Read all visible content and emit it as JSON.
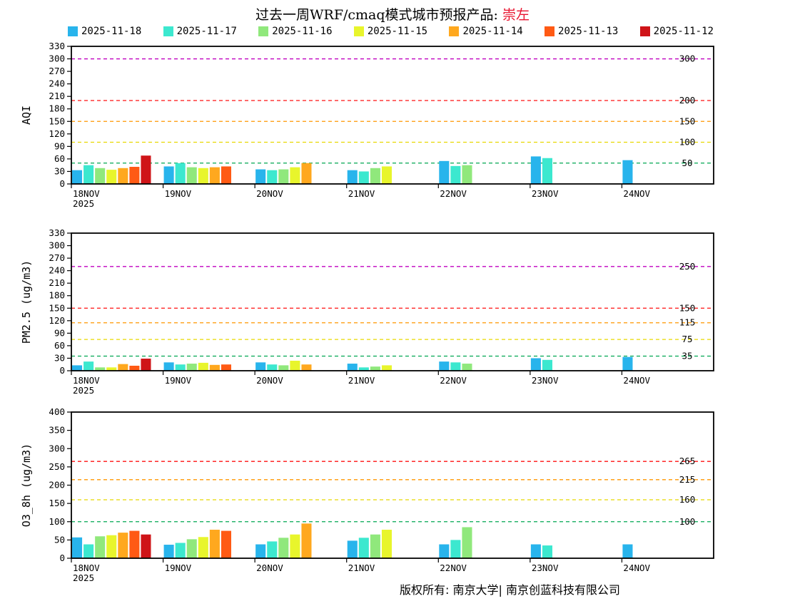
{
  "title": {
    "prefix": "过去一周WRF/cmaq模式城市预报产品: ",
    "city": "崇左"
  },
  "legend": [
    {
      "label": "2025-11-18",
      "color": "#28b4ec"
    },
    {
      "label": "2025-11-17",
      "color": "#3ce8cf"
    },
    {
      "label": "2025-11-16",
      "color": "#90e87c"
    },
    {
      "label": "2025-11-15",
      "color": "#e8f52c"
    },
    {
      "label": "2025-11-14",
      "color": "#ffa81e"
    },
    {
      "label": "2025-11-13",
      "color": "#ff5a14"
    },
    {
      "label": "2025-11-12",
      "color": "#cf1418"
    }
  ],
  "footer": "版权所有: 南京大学| 南京创蓝科技有限公司",
  "x_year": "2025",
  "chart_data": [
    {
      "type": "bar",
      "name": "aqi",
      "ylabel": "AQI",
      "ylim": [
        0,
        330
      ],
      "ytick_step": 30,
      "grid": false,
      "legend_position": "top",
      "categories": [
        "18NOV",
        "19NOV",
        "20NOV",
        "21NOV",
        "22NOV",
        "23NOV",
        "24NOV"
      ],
      "series": [
        {
          "name": "2025-11-18",
          "values": [
            33,
            42,
            35,
            33,
            55,
            66,
            57
          ]
        },
        {
          "name": "2025-11-17",
          "values": [
            45,
            50,
            33,
            30,
            43,
            62,
            null
          ]
        },
        {
          "name": "2025-11-16",
          "values": [
            38,
            40,
            35,
            38,
            45,
            null,
            null
          ]
        },
        {
          "name": "2025-11-15",
          "values": [
            34,
            38,
            40,
            42,
            null,
            null,
            null
          ]
        },
        {
          "name": "2025-11-14",
          "values": [
            38,
            40,
            50,
            null,
            null,
            null,
            null
          ]
        },
        {
          "name": "2025-11-13",
          "values": [
            41,
            42,
            null,
            null,
            null,
            null,
            null
          ]
        },
        {
          "name": "2025-11-12",
          "values": [
            68,
            null,
            null,
            null,
            null,
            null,
            null
          ]
        }
      ],
      "ref_lines": [
        {
          "value": 50,
          "color": "#00a651",
          "label": "50"
        },
        {
          "value": 100,
          "color": "#e8d800",
          "label": "100"
        },
        {
          "value": 150,
          "color": "#ff9800",
          "label": "150"
        },
        {
          "value": 200,
          "color": "#ff1111",
          "label": "200"
        },
        {
          "value": 300,
          "color": "#c000c0",
          "label": "300"
        }
      ]
    },
    {
      "type": "bar",
      "name": "pm25",
      "ylabel": "PM2.5 (ug/m3)",
      "ylim": [
        0,
        330
      ],
      "ytick_step": 30,
      "grid": false,
      "categories": [
        "18NOV",
        "19NOV",
        "20NOV",
        "21NOV",
        "22NOV",
        "23NOV",
        "24NOV"
      ],
      "series": [
        {
          "name": "2025-11-18",
          "values": [
            13,
            20,
            20,
            17,
            22,
            30,
            33
          ]
        },
        {
          "name": "2025-11-17",
          "values": [
            22,
            15,
            15,
            8,
            20,
            26,
            null
          ]
        },
        {
          "name": "2025-11-16",
          "values": [
            8,
            17,
            13,
            10,
            17,
            null,
            null
          ]
        },
        {
          "name": "2025-11-15",
          "values": [
            8,
            19,
            24,
            13,
            null,
            null,
            null
          ]
        },
        {
          "name": "2025-11-14",
          "values": [
            16,
            14,
            15,
            null,
            null,
            null,
            null
          ]
        },
        {
          "name": "2025-11-13",
          "values": [
            12,
            15,
            null,
            null,
            null,
            null,
            null
          ]
        },
        {
          "name": "2025-11-12",
          "values": [
            29,
            null,
            null,
            null,
            null,
            null,
            null
          ]
        }
      ],
      "ref_lines": [
        {
          "value": 35,
          "color": "#00a651",
          "label": "35"
        },
        {
          "value": 75,
          "color": "#e8d800",
          "label": "75"
        },
        {
          "value": 115,
          "color": "#ff9800",
          "label": "115"
        },
        {
          "value": 150,
          "color": "#ff1111",
          "label": "150"
        },
        {
          "value": 250,
          "color": "#c000c0",
          "label": "250"
        }
      ]
    },
    {
      "type": "bar",
      "name": "o3_8h",
      "ylabel": "O3_8h (ug/m3)",
      "ylim": [
        0,
        400
      ],
      "ytick_step": 50,
      "grid": false,
      "categories": [
        "18NOV",
        "19NOV",
        "20NOV",
        "21NOV",
        "22NOV",
        "23NOV",
        "24NOV"
      ],
      "series": [
        {
          "name": "2025-11-18",
          "values": [
            57,
            37,
            38,
            48,
            38,
            38,
            38
          ]
        },
        {
          "name": "2025-11-17",
          "values": [
            38,
            42,
            46,
            56,
            50,
            35,
            null
          ]
        },
        {
          "name": "2025-11-16",
          "values": [
            60,
            52,
            56,
            65,
            85,
            null,
            null
          ]
        },
        {
          "name": "2025-11-15",
          "values": [
            63,
            58,
            65,
            78,
            null,
            null,
            null
          ]
        },
        {
          "name": "2025-11-14",
          "values": [
            70,
            78,
            95,
            null,
            null,
            null,
            null
          ]
        },
        {
          "name": "2025-11-13",
          "values": [
            75,
            75,
            null,
            null,
            null,
            null,
            null
          ]
        },
        {
          "name": "2025-11-12",
          "values": [
            65,
            null,
            null,
            null,
            null,
            null,
            null
          ]
        }
      ],
      "ref_lines": [
        {
          "value": 100,
          "color": "#00a651",
          "label": "100"
        },
        {
          "value": 160,
          "color": "#e8d800",
          "label": "160"
        },
        {
          "value": 215,
          "color": "#ff9800",
          "label": "215"
        },
        {
          "value": 265,
          "color": "#ff1111",
          "label": "265"
        }
      ]
    }
  ]
}
